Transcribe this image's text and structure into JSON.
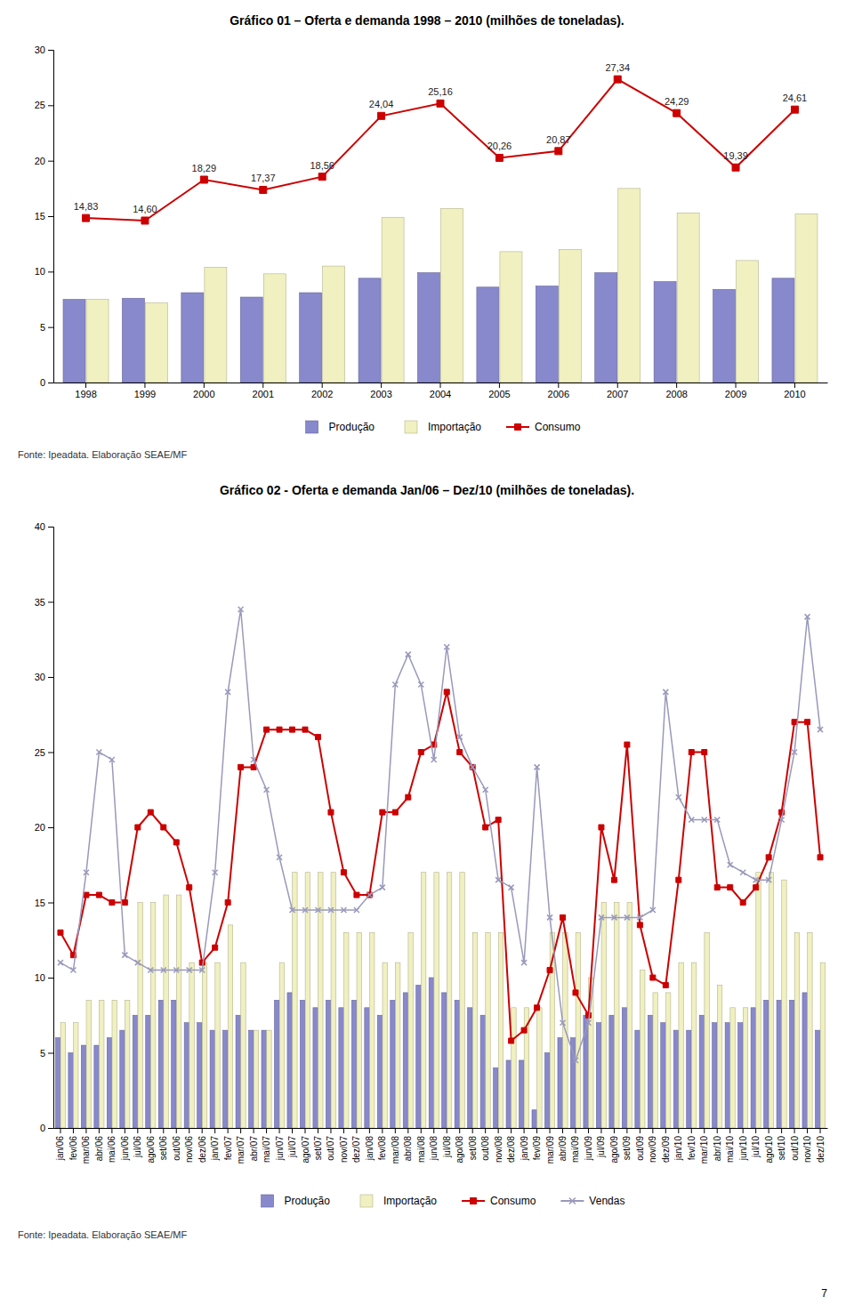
{
  "chart_data": [
    {
      "type": "bar",
      "title": "Gráfico 01 – Oferta e demanda 1998 – 2010 (milhões de toneladas).",
      "categories": [
        "1998",
        "1999",
        "2000",
        "2001",
        "2002",
        "2003",
        "2004",
        "2005",
        "2006",
        "2007",
        "2008",
        "2009",
        "2010"
      ],
      "series": [
        {
          "name": "Produção",
          "type": "bar",
          "color": "#8888CC",
          "values": [
            7.5,
            7.6,
            8.1,
            7.7,
            8.1,
            9.4,
            9.9,
            8.6,
            8.7,
            9.9,
            9.1,
            8.4,
            9.4
          ]
        },
        {
          "name": "Importação",
          "type": "bar",
          "color": "#F0F0C0",
          "values": [
            7.5,
            7.2,
            10.4,
            9.8,
            10.5,
            14.9,
            15.7,
            11.8,
            12.0,
            17.5,
            15.3,
            11.0,
            15.2
          ]
        },
        {
          "name": "Consumo",
          "type": "line",
          "color": "#CC0000",
          "marker": "square",
          "data_labels": true,
          "values": [
            14.83,
            14.6,
            18.29,
            17.37,
            18.56,
            24.04,
            25.16,
            20.26,
            20.87,
            27.34,
            24.29,
            19.39,
            24.61
          ],
          "value_labels": [
            "14,83",
            "14,60",
            "18,29",
            "17,37",
            "18,56",
            "24,04",
            "25,16",
            "20,26",
            "20,87",
            "27,34",
            "24,29",
            "19,39",
            "24,61"
          ]
        }
      ],
      "ylim": [
        0,
        30
      ],
      "yticks": [
        0,
        5,
        10,
        15,
        20,
        25,
        30
      ],
      "grid": false,
      "legend": "bottom",
      "annotations": [
        "Fonte: Ipeadata. Elaboração SEAE/MF"
      ]
    },
    {
      "type": "bar",
      "title": "Gráfico 02 - Oferta e demanda Jan/06 – Dez/10 (milhões de toneladas).",
      "categories": [
        "jan/06",
        "fev/06",
        "mar/06",
        "abr/06",
        "mai/06",
        "jun/06",
        "jul/06",
        "ago/06",
        "set/06",
        "out/06",
        "nov/06",
        "dez/06",
        "jan/07",
        "fev/07",
        "mar/07",
        "abr/07",
        "mai/07",
        "jun/07",
        "jul/07",
        "ago/07",
        "set/07",
        "out/07",
        "nov/07",
        "dez/07",
        "jan/08",
        "fev/08",
        "mar/08",
        "abr/08",
        "mai/08",
        "jun/08",
        "jul/08",
        "ago/08",
        "set/08",
        "out/08",
        "nov/08",
        "dez/08",
        "jan/09",
        "fev/09",
        "mar/09",
        "abr/09",
        "mai/09",
        "jun/09",
        "jul/09",
        "ago/09",
        "set/09",
        "out/09",
        "nov/09",
        "dez/09",
        "jan/10",
        "fev/10",
        "mar/10",
        "abr/10",
        "mai/10",
        "jun/10",
        "jul/10",
        "ago/10",
        "set/10",
        "out/10",
        "nov/10",
        "dez/10"
      ],
      "series": [
        {
          "name": "Produção",
          "type": "bar",
          "color": "#8888CC",
          "values": [
            6.0,
            5.0,
            5.5,
            5.5,
            6.0,
            6.5,
            7.5,
            7.5,
            8.5,
            8.5,
            7.0,
            7.0,
            6.5,
            6.5,
            7.5,
            6.5,
            6.5,
            8.5,
            9.0,
            8.5,
            8.0,
            8.5,
            8.0,
            8.5,
            8.0,
            7.5,
            8.5,
            9.0,
            9.5,
            10.0,
            9.0,
            8.5,
            8.0,
            7.5,
            4.0,
            4.5,
            4.5,
            1.2,
            5.0,
            6.0,
            6.0,
            7.5,
            7.0,
            7.5,
            8.0,
            6.5,
            7.5,
            7.0,
            6.5,
            6.5,
            7.5,
            7.0,
            7.0,
            7.0,
            8.0,
            8.5,
            8.5,
            8.5,
            9.0,
            6.5
          ]
        },
        {
          "name": "Importação",
          "type": "bar",
          "color": "#F0F0C0",
          "values": [
            7.0,
            7.0,
            8.5,
            8.5,
            8.5,
            8.5,
            15.0,
            15.0,
            15.5,
            15.5,
            11.0,
            11.0,
            11.0,
            13.5,
            11.0,
            6.5,
            6.5,
            11.0,
            17.0,
            17.0,
            17.0,
            17.0,
            13.0,
            13.0,
            13.0,
            11.0,
            11.0,
            13.0,
            17.0,
            17.0,
            17.0,
            17.0,
            13.0,
            13.0,
            13.0,
            8.0,
            8.0,
            8.0,
            13.0,
            13.0,
            13.0,
            10.0,
            15.0,
            15.0,
            15.0,
            10.5,
            9.0,
            9.0,
            11.0,
            11.0,
            13.0,
            9.5,
            8.0,
            8.0,
            17.0,
            17.0,
            16.5,
            13.0,
            13.0,
            11.0
          ]
        },
        {
          "name": "Consumo",
          "type": "line",
          "color": "#CC0000",
          "marker": "square",
          "values": [
            13.0,
            11.5,
            15.5,
            15.5,
            15.0,
            15.0,
            20.0,
            21.0,
            20.0,
            19.0,
            16.0,
            11.0,
            12.0,
            15.0,
            24.0,
            24.0,
            26.5,
            26.5,
            26.5,
            26.5,
            26.0,
            21.0,
            17.0,
            15.5,
            15.5,
            21.0,
            21.0,
            22.0,
            25.0,
            25.5,
            29.0,
            25.0,
            24.0,
            20.0,
            20.5,
            5.8,
            6.5,
            8.0,
            10.5,
            14.0,
            9.0,
            7.5,
            20.0,
            16.5,
            25.5,
            13.5,
            10.0,
            9.5,
            16.5,
            25.0,
            25.0,
            16.0,
            16.0,
            15.0,
            16.0,
            18.0,
            21.0,
            27.0,
            27.0,
            18.0
          ]
        },
        {
          "name": "Vendas",
          "type": "line",
          "color": "#9999BB",
          "marker": "x",
          "values": [
            11.0,
            10.5,
            17.0,
            25.0,
            24.5,
            11.5,
            11.0,
            10.5,
            10.5,
            10.5,
            10.5,
            10.5,
            17.0,
            29.0,
            34.5,
            24.5,
            22.5,
            18.0,
            14.5,
            14.5,
            14.5,
            14.5,
            14.5,
            14.5,
            15.5,
            16.0,
            29.5,
            31.5,
            29.5,
            24.5,
            32.0,
            26.0,
            24.0,
            22.5,
            16.5,
            16.0,
            11.0,
            24.0,
            14.0,
            7.0,
            4.5,
            7.0,
            14.0,
            14.0,
            14.0,
            14.0,
            14.5,
            29.0,
            22.0,
            20.5,
            20.5,
            20.5,
            17.5,
            17.0,
            16.5,
            16.5,
            20.5,
            25.0,
            34.0,
            26.5
          ]
        }
      ],
      "ylim": [
        0,
        40
      ],
      "yticks": [
        0,
        5,
        10,
        15,
        20,
        25,
        30,
        35,
        40
      ],
      "grid": false,
      "legend": "bottom",
      "annotations": [
        "Fonte: Ipeadata. Elaboração SEAE/MF"
      ]
    }
  ],
  "page_number": "7"
}
